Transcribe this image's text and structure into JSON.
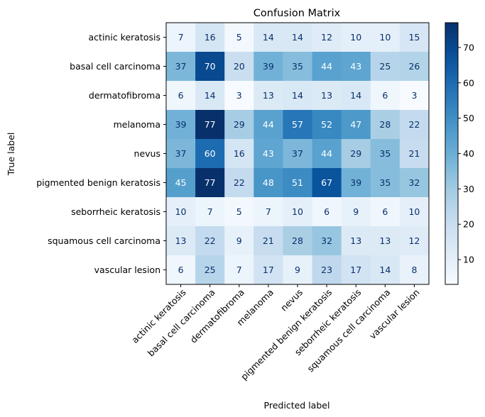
{
  "chart_data": {
    "type": "heatmap",
    "title": "Confusion Matrix",
    "xlabel": "Predicted label",
    "ylabel": "True label",
    "x_labels": [
      "actinic keratosis",
      "basal cell carcinoma",
      "dermatofibroma",
      "melanoma",
      "nevus",
      "pigmented benign keratosis",
      "seborrheic keratosis",
      "squamous cell carcinoma",
      "vascular lesion"
    ],
    "y_labels": [
      "actinic keratosis",
      "basal cell carcinoma",
      "dermatofibroma",
      "melanoma",
      "nevus",
      "pigmented benign keratosis",
      "seborrheic keratosis",
      "squamous cell carcinoma",
      "vascular lesion"
    ],
    "values": [
      [
        7,
        16,
        5,
        14,
        14,
        12,
        10,
        10,
        15
      ],
      [
        37,
        70,
        20,
        39,
        35,
        44,
        43,
        25,
        26
      ],
      [
        6,
        14,
        3,
        13,
        14,
        13,
        14,
        6,
        3
      ],
      [
        39,
        77,
        29,
        44,
        57,
        52,
        47,
        28,
        22
      ],
      [
        37,
        60,
        16,
        43,
        37,
        44,
        29,
        35,
        21
      ],
      [
        45,
        77,
        22,
        48,
        51,
        67,
        39,
        35,
        32
      ],
      [
        10,
        7,
        5,
        7,
        10,
        6,
        9,
        6,
        10
      ],
      [
        13,
        22,
        9,
        21,
        28,
        32,
        13,
        13,
        12
      ],
      [
        6,
        25,
        7,
        17,
        9,
        23,
        17,
        14,
        8
      ]
    ],
    "colormap": "Blues",
    "vmin": 3,
    "vmax": 77,
    "colorbar_ticks": [
      10,
      20,
      30,
      40,
      50,
      60,
      70
    ]
  }
}
